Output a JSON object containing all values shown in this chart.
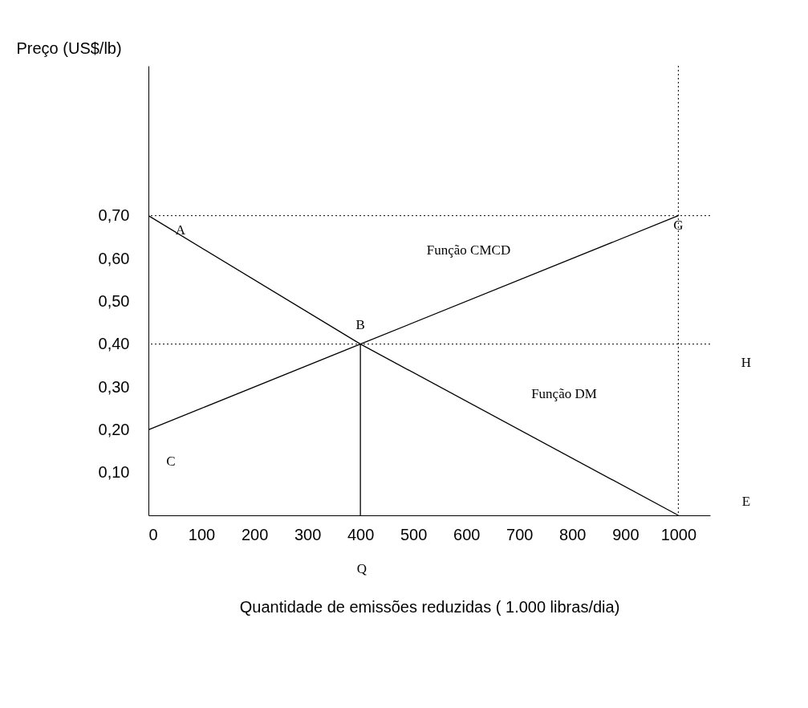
{
  "chart_data": {
    "type": "line",
    "xlabel": "Quantidade de emissões reduzidas ( 1.000 libras/dia)",
    "ylabel": "Preço (US$/lb)",
    "xlim": [
      0,
      1060
    ],
    "ylim": [
      0,
      1.05
    ],
    "xticks": [
      0,
      100,
      200,
      300,
      400,
      500,
      600,
      700,
      800,
      900,
      1000
    ],
    "yticks": [
      {
        "value": 0.1,
        "label": "0,10"
      },
      {
        "value": 0.2,
        "label": "0,20"
      },
      {
        "value": 0.3,
        "label": "0,30"
      },
      {
        "value": 0.4,
        "label": "0,40"
      },
      {
        "value": 0.5,
        "label": "0,50"
      },
      {
        "value": 0.6,
        "label": "0,60"
      },
      {
        "value": 0.7,
        "label": "0,70"
      }
    ],
    "grid": false,
    "legend": false,
    "line_style": "solid",
    "marker": "none",
    "series": [
      {
        "color": "#000000",
        "x": [
          0,
          400,
          1000
        ],
        "values": [
          0.7,
          0.4,
          0
        ]
      },
      {
        "color": "#000000",
        "x": [
          0,
          400,
          1000
        ],
        "values": [
          0.2,
          0.4,
          0.7
        ]
      },
      {
        "color": "#000000",
        "x": [
          400,
          400
        ],
        "values": [
          0,
          0.4
        ]
      }
    ],
    "ref_lines": [
      {
        "axis": "y",
        "value": 0.7,
        "color": "#000000",
        "line_style": "dotted"
      },
      {
        "axis": "y",
        "value": 0.4,
        "color": "#000000",
        "line_style": "dotted"
      },
      {
        "axis": "x",
        "value": 1000,
        "color": "#000000",
        "line_style": "dotted"
      }
    ],
    "annotations": [
      {
        "text": "A",
        "x": 0,
        "y": 0.7
      },
      {
        "text": "B",
        "x": 400,
        "y": 0.4
      },
      {
        "text": "C",
        "x": 0,
        "y": 0.2
      },
      {
        "text": "G",
        "x": 1000,
        "y": 0.7
      },
      "E",
      "H",
      "Função CMCD",
      "Função DM",
      "Q"
    ]
  }
}
